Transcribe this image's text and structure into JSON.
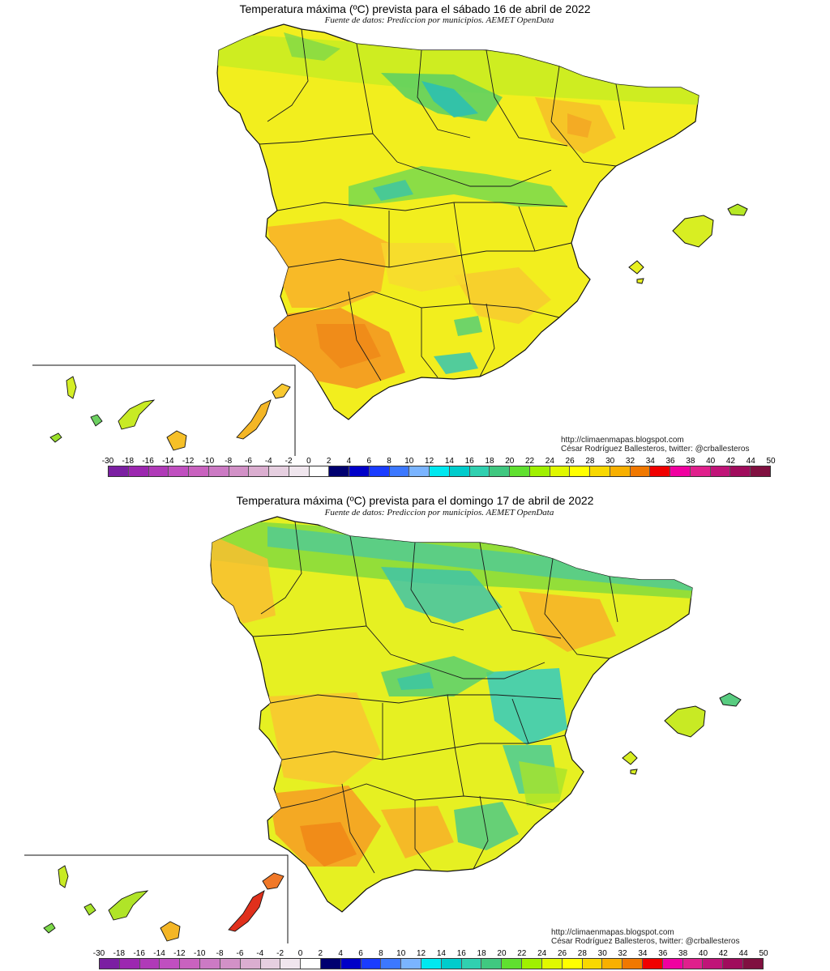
{
  "maps": [
    {
      "title": "Temperatura máxima (ºC) prevista para el sábado 16 de abril de 2022",
      "subtitle": "Fuente de datos: Prediccion por municipios. AEMET OpenData",
      "credit_url": "http://climaenmapas.blogspot.com",
      "credit_author": "César Rodríguez Ballesteros, twitter: @crballesteros"
    },
    {
      "title": "Temperatura máxima (ºC) prevista para el domingo 17 de abril de 2022",
      "subtitle": "Fuente de datos: Prediccion por municipios. AEMET OpenData",
      "credit_url": "http://climaenmapas.blogspot.com",
      "credit_author": "César Rodríguez Ballesteros, twitter: @crballesteros"
    }
  ],
  "legend": {
    "labels": [
      "-30",
      "-18",
      "-16",
      "-14",
      "-12",
      "-10",
      "-8",
      "-6",
      "-4",
      "-2",
      "0",
      "2",
      "4",
      "6",
      "8",
      "10",
      "12",
      "14",
      "16",
      "18",
      "20",
      "22",
      "24",
      "26",
      "28",
      "30",
      "32",
      "34",
      "36",
      "38",
      "40",
      "42",
      "44",
      "50"
    ],
    "colors": [
      "#7b1fa2",
      "#9c27b0",
      "#b03ab8",
      "#c04fc0",
      "#c962bf",
      "#cc7ac4",
      "#d291c7",
      "#dbaed0",
      "#e6cfe0",
      "#f0e6ee",
      "#ffffff",
      "#000070",
      "#0000c8",
      "#1a3cff",
      "#3c78ff",
      "#7ab4ff",
      "#00e8f0",
      "#00cccc",
      "#30d0b0",
      "#40c880",
      "#60e030",
      "#a0f000",
      "#e0f800",
      "#ffff00",
      "#f8d800",
      "#f8b000",
      "#f07800",
      "#f00000",
      "#f000a0",
      "#e0208c",
      "#c01478",
      "#a00c5c",
      "#801040"
    ]
  },
  "colors": {
    "warm": "#f6a623",
    "hot": "#f28a16",
    "mild": "#f0ee1c",
    "cool": "#9ae02a",
    "cold": "#3cc8a8",
    "very_hot": "#e0301c",
    "border": "#1a1a1a"
  }
}
